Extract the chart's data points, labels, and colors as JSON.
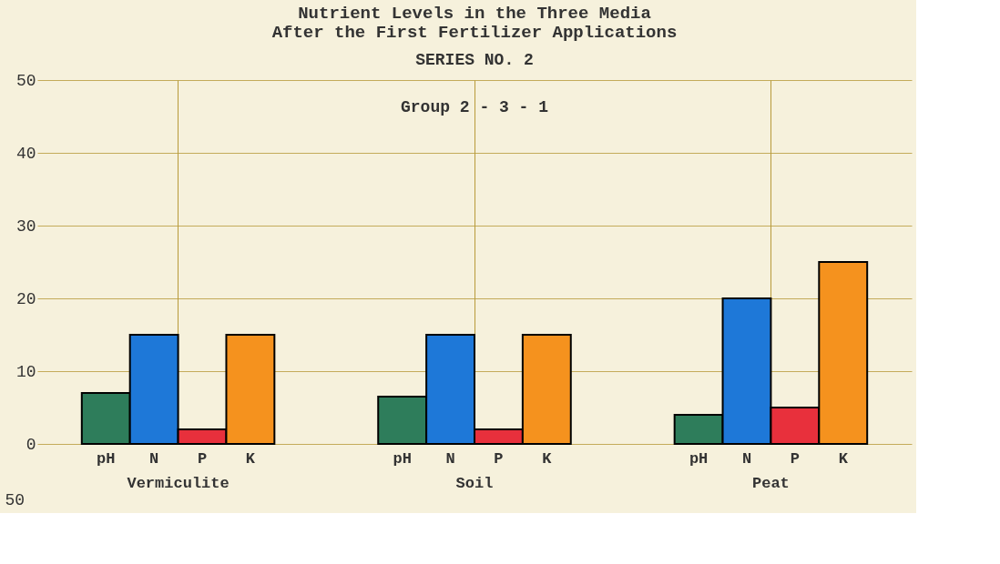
{
  "chart_data": {
    "type": "bar",
    "title": "Nutrient Levels in the Three Media\nAfter the First Fertilizer Applications",
    "subtitle": "SERIES NO. 2",
    "annotations": [
      "Group 2 - 3 - 1",
      "50"
    ],
    "categories": [
      "Vermiculite",
      "Soil",
      "Peat"
    ],
    "series": [
      {
        "name": "pH",
        "color": "#2e7d5b",
        "values": [
          7,
          6.5,
          4
        ]
      },
      {
        "name": "N",
        "color": "#1e78d8",
        "values": [
          15,
          15,
          20
        ]
      },
      {
        "name": "P",
        "color": "#e8303c",
        "values": [
          2,
          2,
          5
        ]
      },
      {
        "name": "K",
        "color": "#f5921e",
        "values": [
          15,
          15,
          25
        ]
      }
    ],
    "ylim": [
      0,
      50
    ],
    "yticks": [
      0,
      10,
      20,
      30,
      40,
      50
    ],
    "grid": true,
    "legend": false
  }
}
